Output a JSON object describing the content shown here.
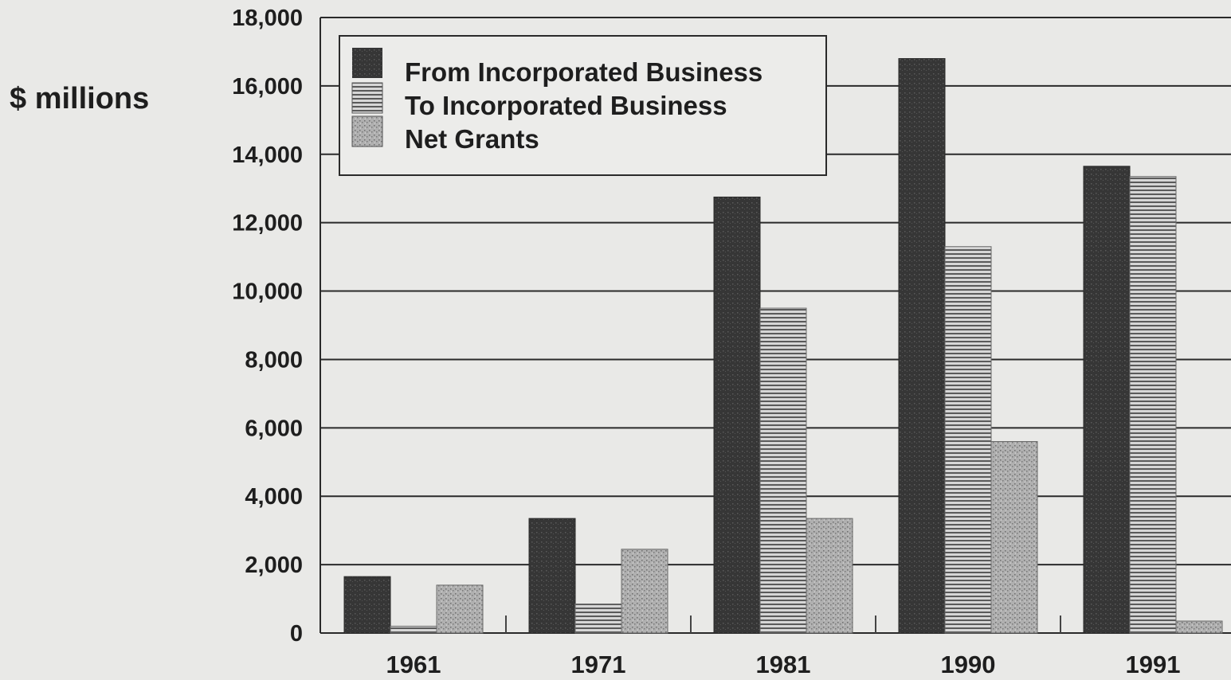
{
  "chart_data": {
    "type": "bar",
    "ylabel": "$ millions",
    "xlabel": "",
    "title": "",
    "ylim": [
      0,
      18000
    ],
    "yticks": [
      0,
      2000,
      4000,
      6000,
      8000,
      10000,
      12000,
      14000,
      16000,
      18000
    ],
    "ytick_labels": [
      "0",
      "2,000",
      "4,000",
      "6,000",
      "8,000",
      "10,000",
      "12,000",
      "14,000",
      "16,000",
      "18,000"
    ],
    "categories": [
      "1961",
      "1971",
      "1981",
      "1990",
      "1991"
    ],
    "series": [
      {
        "name": "From Incorporated Business",
        "values": [
          1650,
          3350,
          12750,
          16800,
          13650
        ]
      },
      {
        "name": "To Incorporated Business",
        "values": [
          200,
          850,
          9500,
          11300,
          13350
        ]
      },
      {
        "name": "Net Grants",
        "values": [
          1400,
          2450,
          3350,
          5600,
          350
        ]
      }
    ],
    "grid": true,
    "legend_position": "top-left"
  },
  "colors": {
    "background": "#e9e9e7",
    "grid": "#2a2a2a",
    "series": [
      "#3b3b3b",
      "#cfcfcf",
      "#a9a9a9"
    ]
  }
}
